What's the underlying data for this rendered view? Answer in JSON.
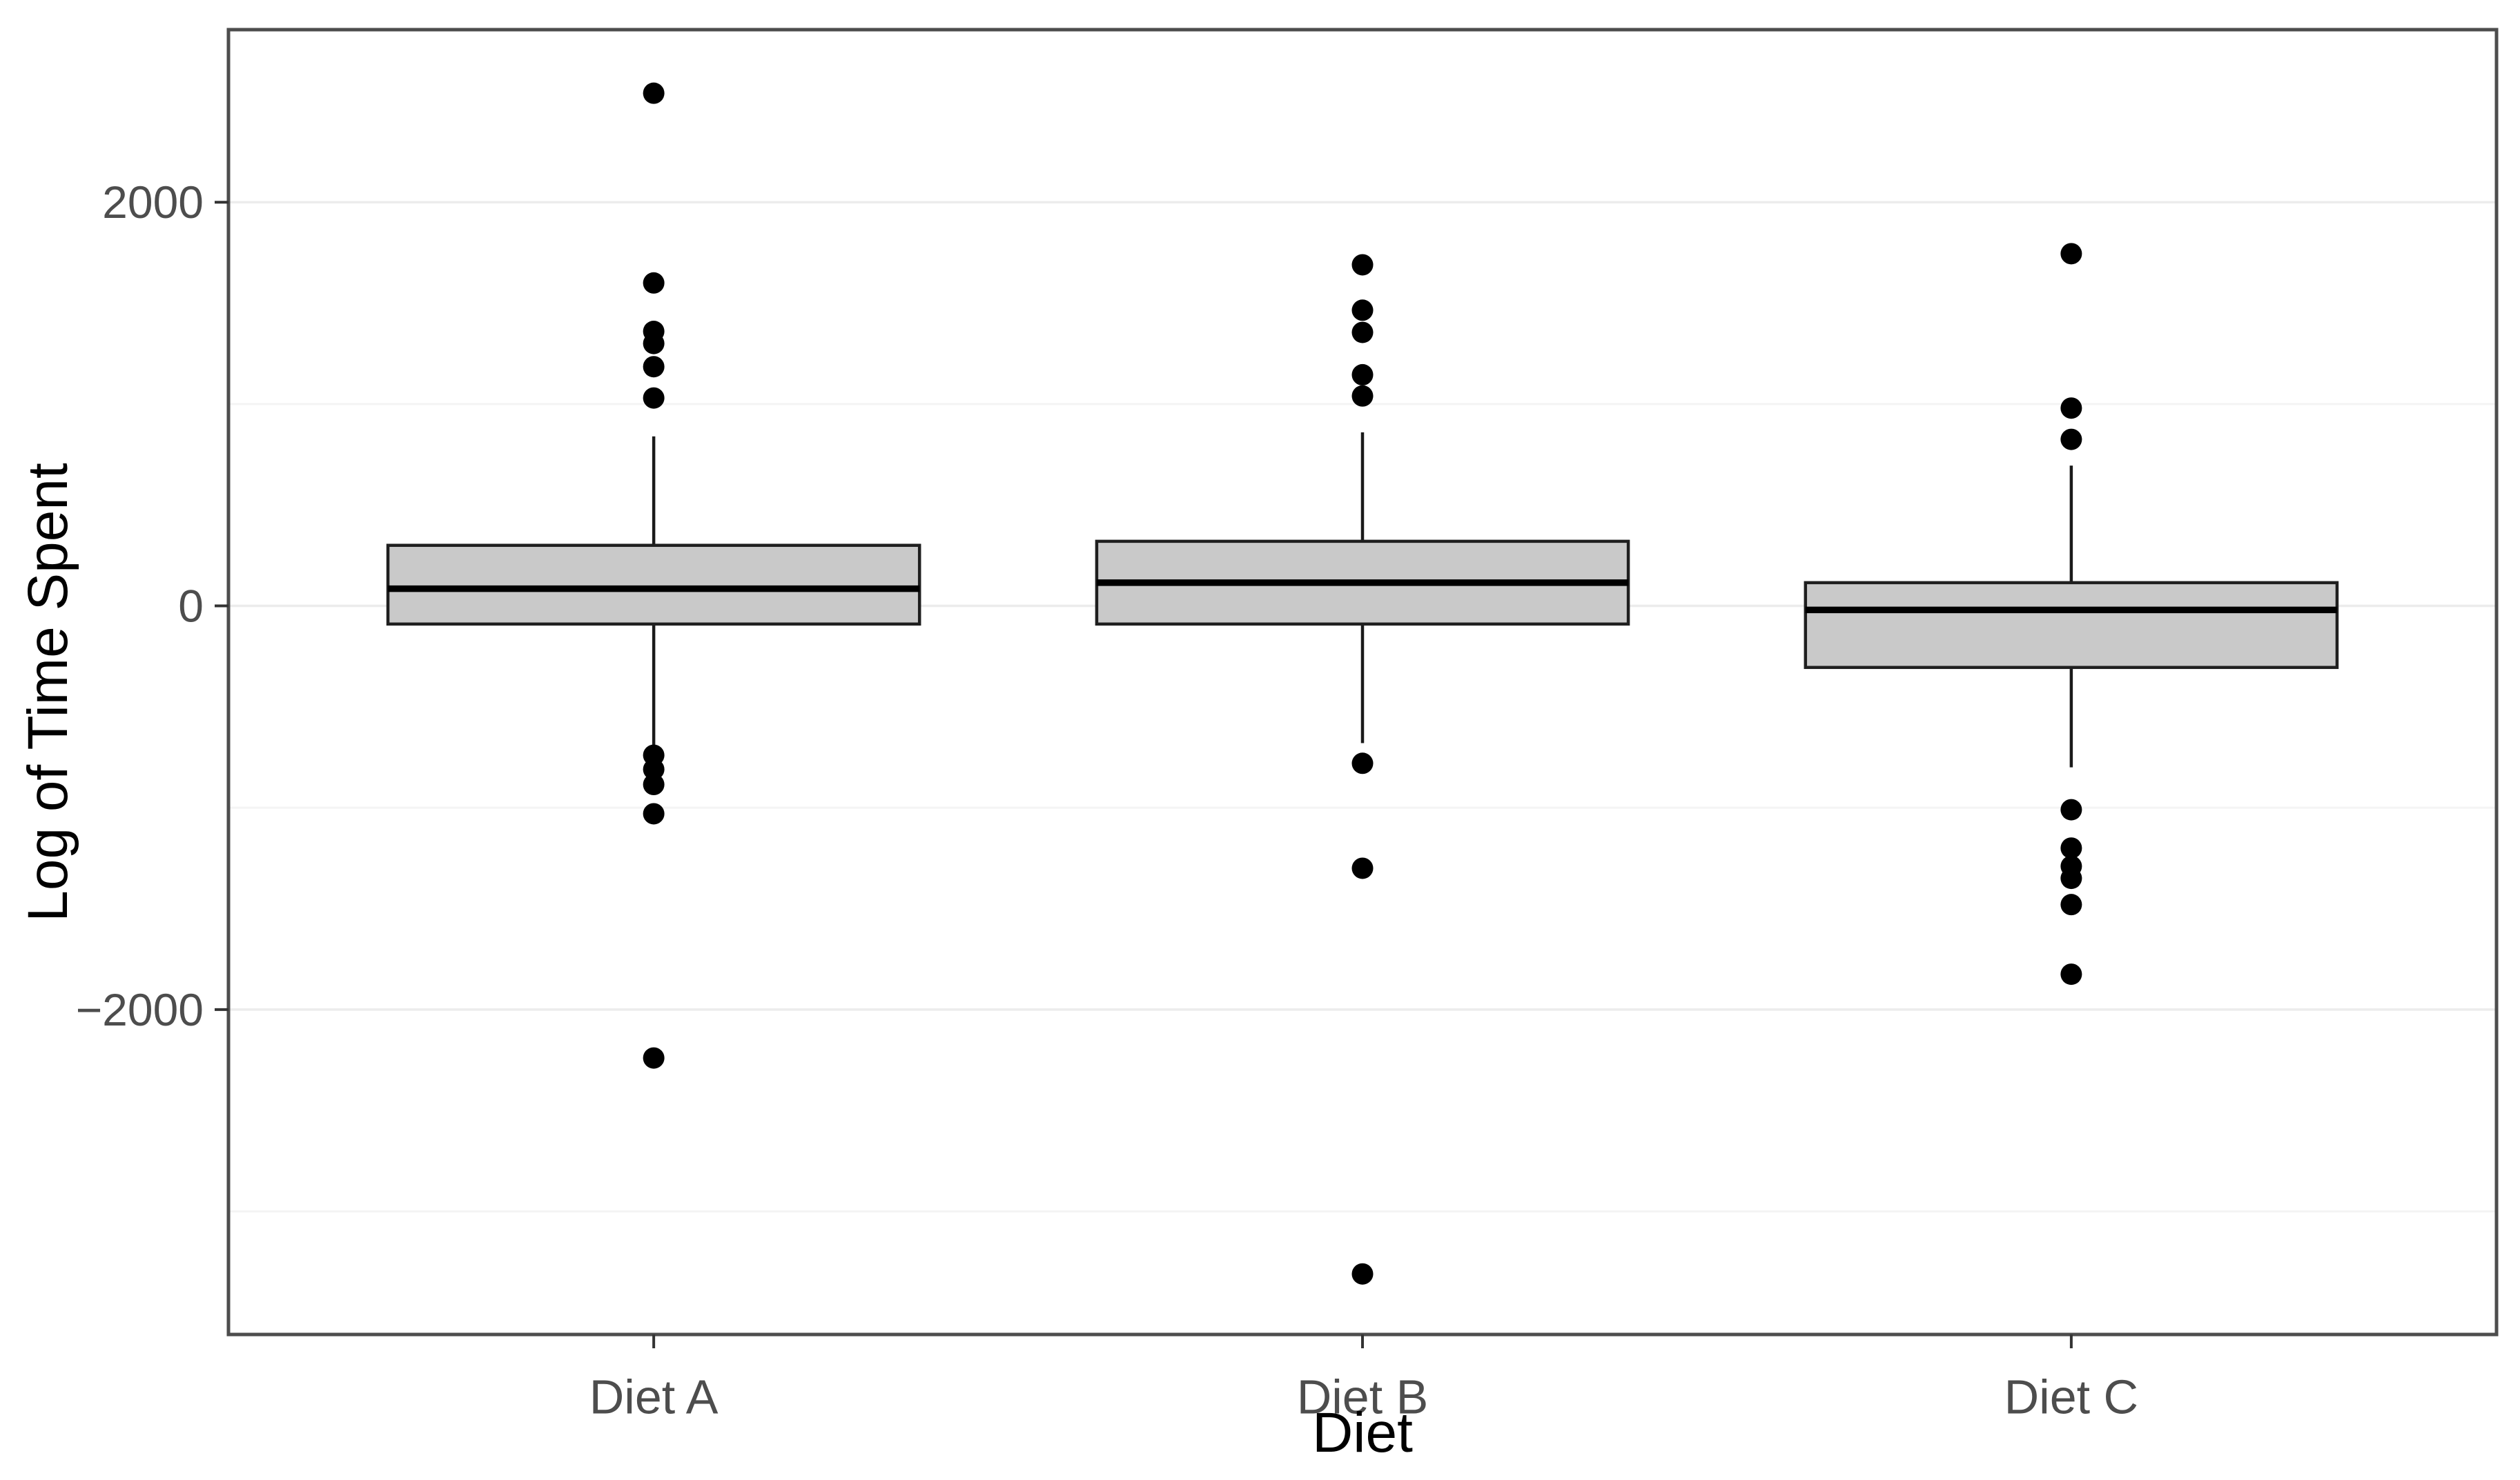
{
  "chart_data": {
    "type": "boxplot",
    "xlabel": "Diet",
    "ylabel": "Log of Time Spent",
    "categories": [
      "Diet A",
      "Diet B",
      "Diet C"
    ],
    "y_axis": {
      "ticks": [
        2000,
        0,
        -2000
      ],
      "tick_labels": [
        "2000",
        "0",
        "−2000"
      ],
      "major_gridlines": [
        2000,
        0,
        -2000
      ],
      "minor_gridlines": [
        1000,
        -1000,
        -3000
      ],
      "ylim": [
        -3610,
        2855
      ]
    },
    "grid": "on",
    "legend": "none",
    "series": [
      {
        "category": "Diet A",
        "q1": -90,
        "median": 85,
        "q3": 300,
        "whisker_low": -690,
        "whisker_high": 840,
        "outliers": [
          2540,
          1600,
          1360,
          1300,
          1185,
          1030,
          -740,
          -810,
          -885,
          -1030,
          -2240
        ]
      },
      {
        "category": "Diet B",
        "q1": -90,
        "median": 115,
        "q3": 320,
        "whisker_low": -680,
        "whisker_high": 860,
        "outliers": [
          1690,
          1465,
          1355,
          1145,
          1040,
          -780,
          -1300,
          -3310
        ]
      },
      {
        "category": "Diet C",
        "q1": -305,
        "median": -20,
        "q3": 115,
        "whisker_low": -800,
        "whisker_high": 695,
        "outliers": [
          1745,
          980,
          825,
          -1010,
          -1200,
          -1290,
          -1350,
          -1480,
          -1825
        ]
      }
    ],
    "style": {
      "box_fill": "#c9c9c9",
      "box_border": "#1f1f1f",
      "median_color": "#000000",
      "whisker_color": "#1a1a1a",
      "outlier_color": "#000000",
      "grid_major_color": "#ececec",
      "grid_minor_color": "#f4f4f4",
      "panel_border_color": "#4d4d4d",
      "tick_mark_color": "#333333",
      "tick_label_color": "#4d4d4d",
      "background": "#ffffff"
    }
  }
}
